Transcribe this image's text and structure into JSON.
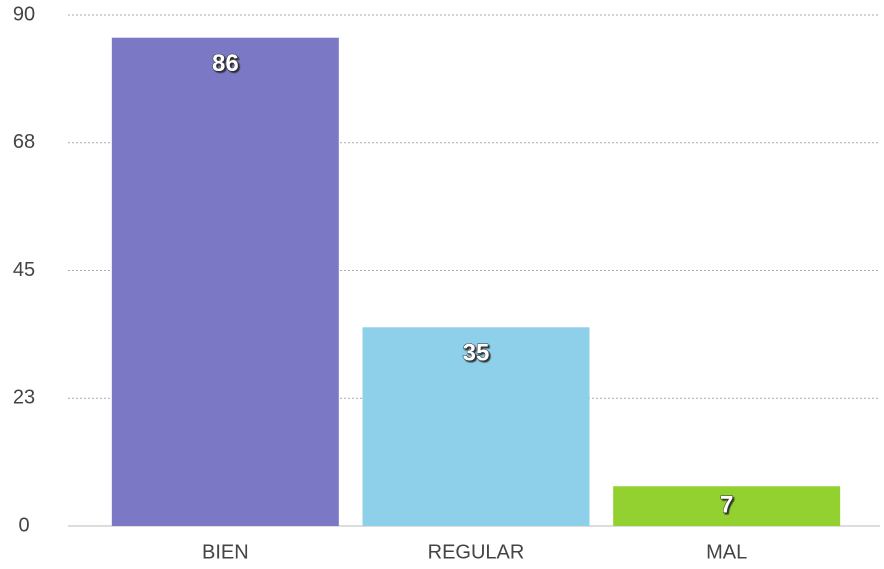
{
  "chart_data": {
    "type": "bar",
    "categories": [
      "BIEN",
      "REGULAR",
      "MAL"
    ],
    "values": [
      86,
      35,
      7
    ],
    "colors": [
      "#7b79c6",
      "#8ecfea",
      "#93d131"
    ],
    "ylim": [
      0,
      90
    ],
    "yticks": [
      0,
      {
        "value": 22.5,
        "label": "23"
      },
      45,
      {
        "value": 67.5,
        "label": "68"
      },
      90
    ],
    "grid": true
  }
}
